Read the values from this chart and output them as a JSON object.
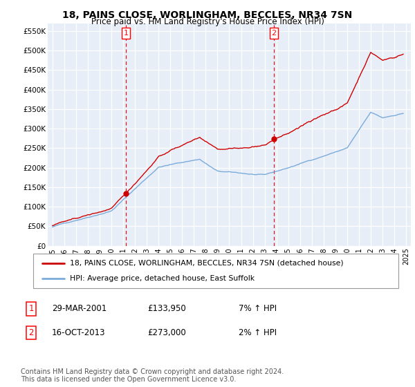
{
  "title": "18, PAINS CLOSE, WORLINGHAM, BECCLES, NR34 7SN",
  "subtitle": "Price paid vs. HM Land Registry's House Price Index (HPI)",
  "ylim": [
    0,
    570000
  ],
  "yticks": [
    0,
    50000,
    100000,
    150000,
    200000,
    250000,
    300000,
    350000,
    400000,
    450000,
    500000,
    550000
  ],
  "ytick_labels": [
    "£0",
    "£50K",
    "£100K",
    "£150K",
    "£200K",
    "£250K",
    "£300K",
    "£350K",
    "£400K",
    "£450K",
    "£500K",
    "£550K"
  ],
  "x_start_year": 1995,
  "x_end_year": 2025,
  "xtick_years": [
    1995,
    1996,
    1997,
    1998,
    1999,
    2000,
    2001,
    2002,
    2003,
    2004,
    2005,
    2006,
    2007,
    2008,
    2009,
    2010,
    2011,
    2012,
    2013,
    2014,
    2015,
    2016,
    2017,
    2018,
    2019,
    2020,
    2021,
    2022,
    2023,
    2024,
    2025
  ],
  "sale1_x": 2001.24,
  "sale1_y": 133950,
  "sale1_label": "1",
  "sale2_x": 2013.79,
  "sale2_y": 273000,
  "sale2_label": "2",
  "dashed_line_color": "#dd0000",
  "property_line_color": "#cc0000",
  "hpi_line_color": "#7aabdb",
  "background_color": "#e8eef8",
  "grid_color": "#ffffff",
  "legend_label_property": "18, PAINS CLOSE, WORLINGHAM, BECCLES, NR34 7SN (detached house)",
  "legend_label_hpi": "HPI: Average price, detached house, East Suffolk",
  "annotation1_date": "29-MAR-2001",
  "annotation1_price": "£133,950",
  "annotation1_hpi": "7% ↑ HPI",
  "annotation2_date": "16-OCT-2013",
  "annotation2_price": "£273,000",
  "annotation2_hpi": "2% ↑ HPI",
  "footer_text": "Contains HM Land Registry data © Crown copyright and database right 2024.\nThis data is licensed under the Open Government Licence v3.0."
}
